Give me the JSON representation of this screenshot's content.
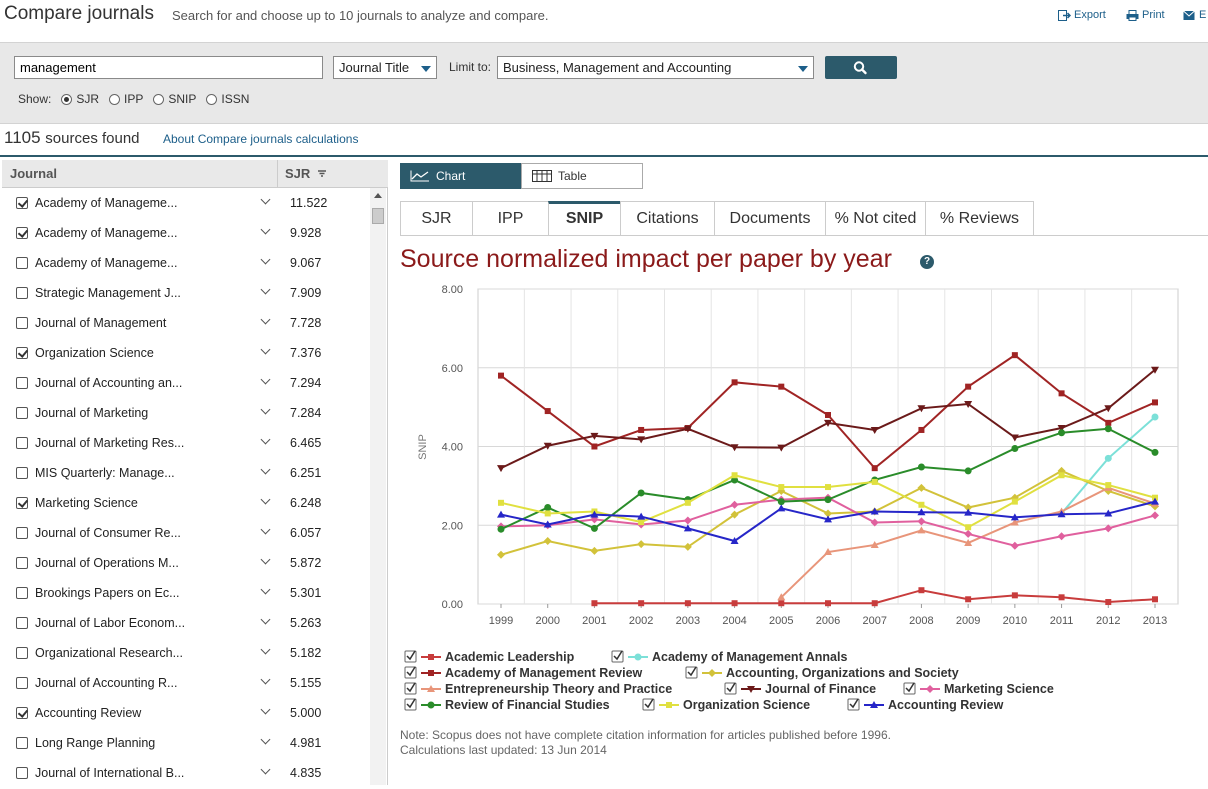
{
  "header": {
    "title": "Compare journals",
    "subtitle": "Search for and choose up to 10 journals to analyze and compare.",
    "export": "Export",
    "print": "Print",
    "email": "E"
  },
  "search": {
    "query": "management",
    "field": "Journal Title",
    "limit_label": "Limit to:",
    "limit_value": "Business, Management and Accounting",
    "show_label": "Show:",
    "show_options": [
      "SJR",
      "IPP",
      "SNIP",
      "ISSN"
    ],
    "show_selected": "SJR"
  },
  "results": {
    "count": "1105",
    "found_text": "sources found",
    "about_link": "About Compare journals calculations"
  },
  "list": {
    "col_journal": "Journal",
    "col_sjr": "SJR",
    "rows": [
      {
        "name": "Academy of Manageme...",
        "sjr": "11.522",
        "checked": true
      },
      {
        "name": "Academy of Manageme...",
        "sjr": "9.928",
        "checked": true
      },
      {
        "name": "Academy of Manageme...",
        "sjr": "9.067",
        "checked": false
      },
      {
        "name": "Strategic Management J...",
        "sjr": "7.909",
        "checked": false
      },
      {
        "name": "Journal of Management",
        "sjr": "7.728",
        "checked": false
      },
      {
        "name": "Organization Science",
        "sjr": "7.376",
        "checked": true
      },
      {
        "name": "Journal of Accounting an...",
        "sjr": "7.294",
        "checked": false
      },
      {
        "name": "Journal of Marketing",
        "sjr": "7.284",
        "checked": false
      },
      {
        "name": "Journal of Marketing Res...",
        "sjr": "6.465",
        "checked": false
      },
      {
        "name": "MIS Quarterly: Manage...",
        "sjr": "6.251",
        "checked": false
      },
      {
        "name": "Marketing Science",
        "sjr": "6.248",
        "checked": true
      },
      {
        "name": "Journal of Consumer Re...",
        "sjr": "6.057",
        "checked": false
      },
      {
        "name": "Journal of Operations M...",
        "sjr": "5.872",
        "checked": false
      },
      {
        "name": "Brookings Papers on Ec...",
        "sjr": "5.301",
        "checked": false
      },
      {
        "name": "Journal of Labor Econom...",
        "sjr": "5.263",
        "checked": false
      },
      {
        "name": "Organizational Research...",
        "sjr": "5.182",
        "checked": false
      },
      {
        "name": "Journal of Accounting R...",
        "sjr": "5.155",
        "checked": false
      },
      {
        "name": "Accounting Review",
        "sjr": "5.000",
        "checked": true
      },
      {
        "name": "Long Range Planning",
        "sjr": "4.981",
        "checked": false
      },
      {
        "name": "Journal of International B...",
        "sjr": "4.835",
        "checked": false
      }
    ]
  },
  "view_toggle": {
    "chart": "Chart",
    "table": "Table",
    "active": "Chart"
  },
  "tabs": [
    "SJR",
    "IPP",
    "SNIP",
    "Citations",
    "Documents",
    "% Not cited",
    "% Reviews"
  ],
  "active_tab": "SNIP",
  "chart_title": "Source normalized impact per paper by year",
  "note_line1": "Note: Scopus does not have complete citation information for articles published before 1996.",
  "note_line2": "Calculations last updated: 13 Jun 2014",
  "chart_data": {
    "type": "line",
    "ylabel": "SNIP",
    "xlabel": "",
    "ylim": [
      0,
      8
    ],
    "yticks": [
      "0.00",
      "2.00",
      "4.00",
      "6.00",
      "8.00"
    ],
    "x": [
      1999,
      2000,
      2001,
      2002,
      2003,
      2004,
      2005,
      2006,
      2007,
      2008,
      2009,
      2010,
      2011,
      2012,
      2013
    ],
    "grid": true,
    "legend": "bottom",
    "series": [
      {
        "name": "Academic Leadership",
        "color": "#c83c3c",
        "marker": "square",
        "values": [
          null,
          null,
          0.02,
          0.02,
          0.02,
          0.02,
          0.02,
          0.02,
          0.02,
          0.35,
          0.12,
          0.22,
          0.17,
          0.05,
          0.12
        ]
      },
      {
        "name": "Academy of Management Annals",
        "color": "#7ce0d8",
        "marker": "circle",
        "values": [
          null,
          null,
          null,
          null,
          null,
          null,
          null,
          null,
          null,
          null,
          null,
          null,
          2.3,
          3.7,
          4.75
        ]
      },
      {
        "name": "Academy of Management Review",
        "color": "#a02424",
        "marker": "square",
        "values": [
          5.8,
          4.9,
          4.0,
          4.42,
          4.47,
          5.63,
          5.52,
          4.8,
          3.45,
          4.42,
          5.52,
          6.32,
          5.35,
          4.6,
          5.12
        ]
      },
      {
        "name": "Accounting, Organizations and Society",
        "color": "#d2c23a",
        "marker": "diamond",
        "values": [
          1.25,
          1.6,
          1.35,
          1.52,
          1.45,
          2.27,
          2.87,
          2.3,
          2.35,
          2.95,
          2.45,
          2.7,
          3.38,
          2.87,
          2.48
        ]
      },
      {
        "name": "Entrepreneurship Theory and Practice",
        "color": "#e8957a",
        "marker": "triangle",
        "values": [
          null,
          null,
          null,
          null,
          null,
          null,
          0.17,
          1.32,
          1.5,
          1.87,
          1.55,
          2.07,
          2.35,
          2.95,
          2.55
        ]
      },
      {
        "name": "Journal of Finance",
        "color": "#6b1a1a",
        "marker": "triangle-down",
        "values": [
          3.45,
          4.02,
          4.27,
          4.18,
          4.45,
          3.98,
          3.97,
          4.6,
          4.42,
          4.97,
          5.08,
          4.23,
          4.47,
          4.97,
          5.95
        ]
      },
      {
        "name": "Marketing Science",
        "color": "#e0609e",
        "marker": "diamond",
        "values": [
          1.97,
          2.0,
          2.15,
          2.02,
          2.12,
          2.52,
          2.65,
          2.7,
          2.07,
          2.1,
          1.78,
          1.48,
          1.72,
          1.92,
          2.25
        ]
      },
      {
        "name": "Review of Financial Studies",
        "color": "#2a8c2a",
        "marker": "circle",
        "values": [
          1.9,
          2.45,
          1.92,
          2.82,
          2.65,
          3.15,
          2.6,
          2.65,
          3.15,
          3.48,
          3.38,
          3.95,
          4.35,
          4.45,
          3.85
        ]
      },
      {
        "name": "Organization Science",
        "color": "#e0e040",
        "marker": "square",
        "values": [
          2.57,
          2.3,
          2.35,
          2.08,
          2.57,
          3.27,
          2.97,
          2.97,
          3.1,
          2.52,
          1.95,
          2.6,
          3.27,
          3.02,
          2.7
        ]
      },
      {
        "name": "Accounting Review",
        "color": "#2626c8",
        "marker": "triangle",
        "values": [
          2.27,
          2.02,
          2.27,
          2.22,
          1.92,
          1.6,
          2.43,
          2.15,
          2.35,
          2.33,
          2.32,
          2.2,
          2.28,
          2.3,
          2.6
        ]
      }
    ]
  }
}
